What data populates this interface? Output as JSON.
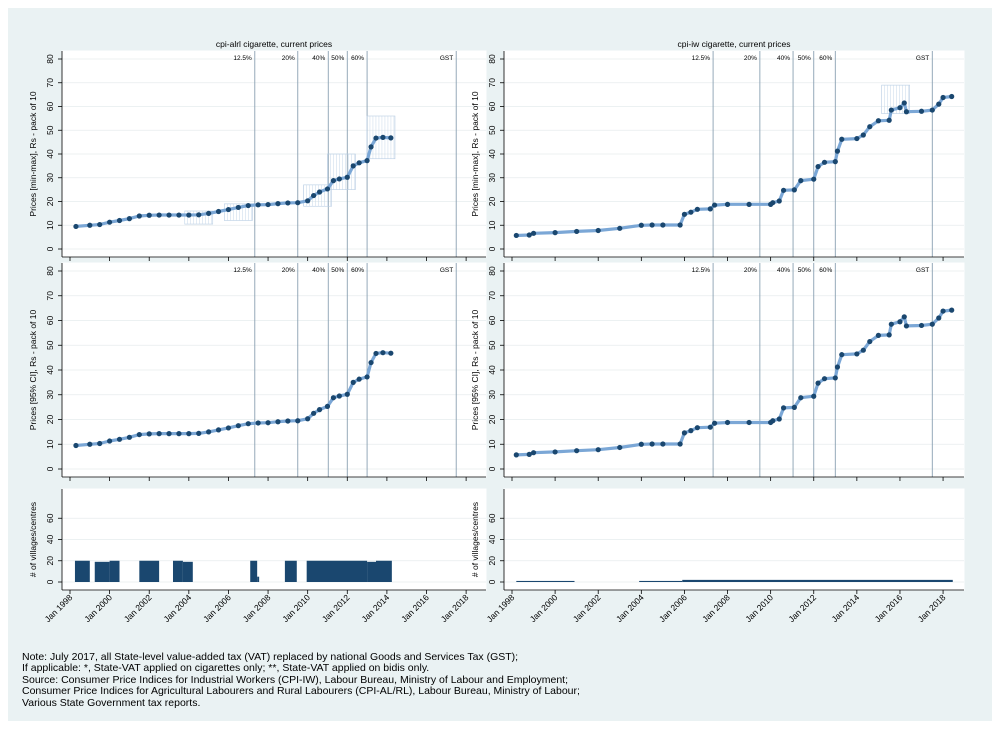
{
  "notes": [
    "Note: July 2017, all State-level value-added tax (VAT) replaced by national Goods and Services Tax (GST);",
    "If applicable: *, State-VAT applied on cigarettes only; **, State-VAT applied on bidis only.",
    "Source: Consumer Price Indices for Industrial Workers (CPI-IW), Labour Bureau, Ministry of Labour and Employment;",
    "Consumer Price Indices for Agricultural Labourers and Rural Labourers (CPI-AL/RL), Labour Bureau, Ministry of Labour;",
    "Various State Government tax reports."
  ],
  "chart_data": [
    {
      "type": "line",
      "panel": "top-left",
      "title": "cpi-alrl cigarette, current prices",
      "ylabel": "Prices [min-max], Rs - pack of 10",
      "ylim": [
        0,
        80
      ],
      "yticks": [
        0,
        10,
        20,
        30,
        40,
        50,
        60,
        70,
        80
      ],
      "xlim": [
        1998,
        2018.6
      ],
      "xticks": [
        1998,
        2000,
        2002,
        2004,
        2006,
        2008,
        2010,
        2012,
        2014,
        2016,
        2018
      ],
      "tax_lines": [
        {
          "label": "12.5%",
          "x": 2007.33
        },
        {
          "label": "20%",
          "x": 2009.5
        },
        {
          "label": "40%",
          "x": 2011.04
        },
        {
          "label": "50%",
          "x": 2012.0
        },
        {
          "label": "60%",
          "x": 2013.0
        },
        {
          "label": "GST",
          "x": 2017.5
        }
      ],
      "series": [
        {
          "values": [
            [
              1998.3,
              9.5
            ],
            [
              1999,
              10
            ],
            [
              1999.5,
              10.3
            ],
            [
              2000,
              11.3
            ],
            [
              2000.5,
              12
            ],
            [
              2001,
              12.8
            ],
            [
              2001.5,
              13.9
            ],
            [
              2002,
              14.2
            ],
            [
              2002.5,
              14.3
            ],
            [
              2003,
              14.3
            ],
            [
              2003.5,
              14.3
            ],
            [
              2004,
              14.3
            ],
            [
              2004.5,
              14.4
            ],
            [
              2005,
              15
            ],
            [
              2005.5,
              15.8
            ],
            [
              2006,
              16.6
            ],
            [
              2006.5,
              17.5
            ],
            [
              2007,
              18.3
            ],
            [
              2007.5,
              18.6
            ],
            [
              2008,
              18.7
            ],
            [
              2008.5,
              19.1
            ],
            [
              2009,
              19.4
            ],
            [
              2009.5,
              19.5
            ],
            [
              2010,
              20.3
            ],
            [
              2010.3,
              22.5
            ],
            [
              2010.6,
              24
            ],
            [
              2011,
              25.3
            ],
            [
              2011.3,
              28.8
            ],
            [
              2011.6,
              29.5
            ],
            [
              2012,
              30.2
            ],
            [
              2012.3,
              35
            ],
            [
              2012.6,
              36.3
            ],
            [
              2013,
              37.2
            ],
            [
              2013.2,
              43
            ],
            [
              2013.45,
              46.7
            ],
            [
              2013.8,
              47
            ],
            [
              2014.2,
              46.8
            ]
          ]
        }
      ],
      "ranges": [
        {
          "x": 2004.5,
          "min": 10.5,
          "max": 16
        },
        {
          "x": 2006.5,
          "min": 12,
          "max": 19
        },
        {
          "x": 2010.5,
          "min": 18,
          "max": 27
        },
        {
          "x": 2011.7,
          "min": 25,
          "max": 40
        },
        {
          "x": 2013.7,
          "min": 38,
          "max": 56
        }
      ]
    },
    {
      "type": "line",
      "panel": "top-right",
      "title": "cpi-iw cigarette, current prices",
      "ylabel": "Prices [min-max], Rs - pack of 10",
      "ylim": [
        0,
        80
      ],
      "yticks": [
        0,
        10,
        20,
        30,
        40,
        50,
        60,
        70,
        80
      ],
      "xlim": [
        1998,
        2018.6
      ],
      "xticks": [
        1998,
        2000,
        2002,
        2004,
        2006,
        2008,
        2010,
        2012,
        2014,
        2016,
        2018
      ],
      "tax_lines": [
        {
          "label": "12.5%",
          "x": 2007.33
        },
        {
          "label": "20%",
          "x": 2009.5
        },
        {
          "label": "40%",
          "x": 2011.04
        },
        {
          "label": "50%",
          "x": 2012.0
        },
        {
          "label": "60%",
          "x": 2013.0
        },
        {
          "label": "GST",
          "x": 2017.5
        }
      ],
      "series": [
        {
          "values": [
            [
              1998.2,
              5.7
            ],
            [
              1998.8,
              5.9
            ],
            [
              1999,
              6.6
            ],
            [
              2000,
              6.9
            ],
            [
              2001,
              7.4
            ],
            [
              2002,
              7.8
            ],
            [
              2003,
              8.7
            ],
            [
              2004,
              10
            ],
            [
              2004.5,
              10.1
            ],
            [
              2005,
              10.1
            ],
            [
              2005.8,
              10.1
            ],
            [
              2006,
              14.6
            ],
            [
              2006.3,
              15.5
            ],
            [
              2006.6,
              16.7
            ],
            [
              2007.2,
              16.9
            ],
            [
              2007.4,
              18.5
            ],
            [
              2008,
              18.8
            ],
            [
              2009,
              18.8
            ],
            [
              2010,
              18.8
            ],
            [
              2010.1,
              19.5
            ],
            [
              2010.4,
              20.2
            ],
            [
              2010.6,
              24.7
            ],
            [
              2011.1,
              24.9
            ],
            [
              2011.4,
              28.8
            ],
            [
              2012,
              29.4
            ],
            [
              2012.2,
              34.7
            ],
            [
              2012.5,
              36.5
            ],
            [
              2013,
              36.8
            ],
            [
              2013.1,
              41.2
            ],
            [
              2013.3,
              46.2
            ],
            [
              2014,
              46.5
            ],
            [
              2014.3,
              48
            ],
            [
              2014.6,
              51.5
            ],
            [
              2015,
              54
            ],
            [
              2015.5,
              54.2
            ],
            [
              2015.6,
              58.5
            ],
            [
              2016,
              59.5
            ],
            [
              2016.2,
              61.5
            ],
            [
              2016.3,
              57.8
            ],
            [
              2017,
              58
            ],
            [
              2017.5,
              58.5
            ],
            [
              2017.8,
              61
            ],
            [
              2018,
              63.8
            ],
            [
              2018.4,
              64.2
            ]
          ]
        }
      ],
      "ranges": [
        {
          "x": 2015.8,
          "min": 57,
          "max": 69
        }
      ]
    },
    {
      "type": "line",
      "panel": "middle-left",
      "title": "",
      "ylabel": "Prices [95% CI], Rs - pack of 10",
      "ylim": [
        0,
        80
      ],
      "yticks": [
        0,
        10,
        20,
        30,
        40,
        50,
        60,
        70,
        80
      ],
      "xlim": [
        1998,
        2018.6
      ],
      "xticks": [
        1998,
        2000,
        2002,
        2004,
        2006,
        2008,
        2010,
        2012,
        2014,
        2016,
        2018
      ],
      "tax_lines": [
        {
          "label": "12.5%",
          "x": 2007.33
        },
        {
          "label": "20%",
          "x": 2009.5
        },
        {
          "label": "40%",
          "x": 2011.04
        },
        {
          "label": "50%",
          "x": 2012.0
        },
        {
          "label": "60%",
          "x": 2013.0
        },
        {
          "label": "GST",
          "x": 2017.5
        }
      ],
      "series": [
        {
          "values": [
            [
              1998.3,
              9.5
            ],
            [
              1999,
              10
            ],
            [
              1999.5,
              10.3
            ],
            [
              2000,
              11.3
            ],
            [
              2000.5,
              12
            ],
            [
              2001,
              12.8
            ],
            [
              2001.5,
              13.9
            ],
            [
              2002,
              14.2
            ],
            [
              2002.5,
              14.3
            ],
            [
              2003,
              14.3
            ],
            [
              2003.5,
              14.3
            ],
            [
              2004,
              14.3
            ],
            [
              2004.5,
              14.4
            ],
            [
              2005,
              15
            ],
            [
              2005.5,
              15.8
            ],
            [
              2006,
              16.6
            ],
            [
              2006.5,
              17.5
            ],
            [
              2007,
              18.3
            ],
            [
              2007.5,
              18.6
            ],
            [
              2008,
              18.7
            ],
            [
              2008.5,
              19.1
            ],
            [
              2009,
              19.4
            ],
            [
              2009.5,
              19.5
            ],
            [
              2010,
              20.3
            ],
            [
              2010.3,
              22.5
            ],
            [
              2010.6,
              24
            ],
            [
              2011,
              25.3
            ],
            [
              2011.3,
              28.8
            ],
            [
              2011.6,
              29.5
            ],
            [
              2012,
              30.2
            ],
            [
              2012.3,
              35
            ],
            [
              2012.6,
              36.3
            ],
            [
              2013,
              37.2
            ],
            [
              2013.2,
              43
            ],
            [
              2013.45,
              46.7
            ],
            [
              2013.8,
              47
            ],
            [
              2014.2,
              46.8
            ]
          ]
        }
      ],
      "ranges": []
    },
    {
      "type": "line",
      "panel": "middle-right",
      "title": "",
      "ylabel": "Prices [95% CI], Rs - pack of 10",
      "ylim": [
        0,
        80
      ],
      "yticks": [
        0,
        10,
        20,
        30,
        40,
        50,
        60,
        70,
        80
      ],
      "xlim": [
        1998,
        2018.6
      ],
      "xticks": [
        1998,
        2000,
        2002,
        2004,
        2006,
        2008,
        2010,
        2012,
        2014,
        2016,
        2018
      ],
      "tax_lines": [
        {
          "label": "12.5%",
          "x": 2007.33
        },
        {
          "label": "20%",
          "x": 2009.5
        },
        {
          "label": "40%",
          "x": 2011.04
        },
        {
          "label": "50%",
          "x": 2012.0
        },
        {
          "label": "60%",
          "x": 2013.0
        },
        {
          "label": "GST",
          "x": 2017.5
        }
      ],
      "series": [
        {
          "values": [
            [
              1998.2,
              5.7
            ],
            [
              1998.8,
              5.9
            ],
            [
              1999,
              6.6
            ],
            [
              2000,
              6.9
            ],
            [
              2001,
              7.4
            ],
            [
              2002,
              7.8
            ],
            [
              2003,
              8.7
            ],
            [
              2004,
              10
            ],
            [
              2004.5,
              10.1
            ],
            [
              2005,
              10.1
            ],
            [
              2005.8,
              10.1
            ],
            [
              2006,
              14.6
            ],
            [
              2006.3,
              15.5
            ],
            [
              2006.6,
              16.7
            ],
            [
              2007.2,
              16.9
            ],
            [
              2007.4,
              18.5
            ],
            [
              2008,
              18.8
            ],
            [
              2009,
              18.8
            ],
            [
              2010,
              18.8
            ],
            [
              2010.1,
              19.5
            ],
            [
              2010.4,
              20.2
            ],
            [
              2010.6,
              24.7
            ],
            [
              2011.1,
              24.9
            ],
            [
              2011.4,
              28.8
            ],
            [
              2012,
              29.4
            ],
            [
              2012.2,
              34.7
            ],
            [
              2012.5,
              36.5
            ],
            [
              2013,
              36.8
            ],
            [
              2013.1,
              41.2
            ],
            [
              2013.3,
              46.2
            ],
            [
              2014,
              46.5
            ],
            [
              2014.3,
              48
            ],
            [
              2014.6,
              51.5
            ],
            [
              2015,
              54
            ],
            [
              2015.5,
              54.2
            ],
            [
              2015.6,
              58.5
            ],
            [
              2016,
              59.5
            ],
            [
              2016.2,
              61.5
            ],
            [
              2016.3,
              57.8
            ],
            [
              2017,
              58
            ],
            [
              2017.5,
              58.5
            ],
            [
              2017.8,
              61
            ],
            [
              2018,
              63.8
            ],
            [
              2018.4,
              64.2
            ]
          ]
        }
      ],
      "ranges": []
    },
    {
      "type": "bar",
      "panel": "bottom-left",
      "ylabel": "# of villages/centres",
      "ylim": [
        0,
        80
      ],
      "yticks": [
        0,
        20,
        40,
        60
      ],
      "xlim": [
        1998,
        2018.6
      ],
      "xticks": [
        1998,
        2000,
        2002,
        2004,
        2006,
        2008,
        2010,
        2012,
        2014,
        2016,
        2018
      ],
      "xtick_labels": [
        "Jan 1998",
        "Jan 2000",
        "Jan 2002",
        "Jan 2004",
        "Jan 2006",
        "Jan 2008",
        "Jan 2010",
        "Jan 2012",
        "Jan 2014",
        "Jan 2016",
        "Jan 2018"
      ],
      "bars": [
        {
          "start": 1998.25,
          "end": 1999.0,
          "value": 20
        },
        {
          "start": 1999.25,
          "end": 2000.0,
          "value": 19
        },
        {
          "start": 2000.0,
          "end": 2000.5,
          "value": 20
        },
        {
          "start": 2001.5,
          "end": 2002.5,
          "value": 20
        },
        {
          "start": 2003.2,
          "end": 2003.7,
          "value": 20
        },
        {
          "start": 2003.7,
          "end": 2004.2,
          "value": 19
        },
        {
          "start": 2007.1,
          "end": 2007.45,
          "value": 20
        },
        {
          "start": 2007.45,
          "end": 2007.55,
          "value": 5
        },
        {
          "start": 2008.85,
          "end": 2009.45,
          "value": 20
        },
        {
          "start": 2009.95,
          "end": 2013.0,
          "value": 20
        },
        {
          "start": 2013.0,
          "end": 2013.45,
          "value": 19
        },
        {
          "start": 2013.45,
          "end": 2014.25,
          "value": 20
        }
      ]
    },
    {
      "type": "bar",
      "panel": "bottom-right",
      "ylabel": "# of villages/centres",
      "ylim": [
        0,
        80
      ],
      "yticks": [
        0,
        20,
        40,
        60
      ],
      "xlim": [
        1998,
        2018.6
      ],
      "xticks": [
        1998,
        2000,
        2002,
        2004,
        2006,
        2008,
        2010,
        2012,
        2014,
        2016,
        2018
      ],
      "xtick_labels": [
        "Jan 1998",
        "Jan 2000",
        "Jan 2002",
        "Jan 2004",
        "Jan 2006",
        "Jan 2008",
        "Jan 2010",
        "Jan 2012",
        "Jan 2014",
        "Jan 2016",
        "Jan 2018"
      ],
      "bars": [
        {
          "start": 1998.2,
          "end": 2000.9,
          "value": 1
        },
        {
          "start": 2003.9,
          "end": 2005.9,
          "value": 1
        },
        {
          "start": 2005.9,
          "end": 2018.45,
          "value": 2
        }
      ]
    }
  ]
}
